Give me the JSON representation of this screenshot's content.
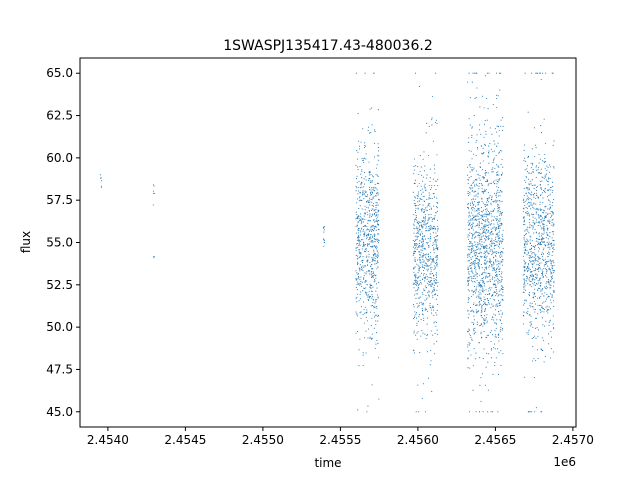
{
  "chart_data": {
    "type": "scatter",
    "title": "1SWASPJ135417.43-480036.2",
    "xlabel": "time",
    "ylabel": "flux",
    "x_offset_label": "1e6",
    "xlim": [
      2.45382,
      2.45702
    ],
    "ylim": [
      44.1,
      65.9
    ],
    "x_ticks": [
      2.454,
      2.4545,
      2.455,
      2.4555,
      2.456,
      2.4565,
      2.457
    ],
    "x_tick_labels": [
      "2.4540",
      "2.4545",
      "2.4550",
      "2.4555",
      "2.4560",
      "2.4565",
      "2.4570"
    ],
    "y_ticks": [
      45.0,
      47.5,
      50.0,
      52.5,
      55.0,
      57.5,
      60.0,
      62.5,
      65.0
    ],
    "y_tick_labels": [
      "45.0",
      "47.5",
      "50.0",
      "52.5",
      "55.0",
      "57.5",
      "60.0",
      "62.5",
      "65.0"
    ],
    "grid": false,
    "marker_color": "#1f77b4",
    "clusters": [
      {
        "x_range": [
          2.45395,
          2.45396
        ],
        "y_center": 58.6,
        "y_spread": 0.2,
        "count": 6
      },
      {
        "x_range": [
          2.45429,
          2.4543
        ],
        "y_center": 58.0,
        "y_spread": 0.5,
        "count": 6
      },
      {
        "x_range": [
          2.45429,
          2.4543
        ],
        "y_center": 54.2,
        "y_spread": 0.2,
        "count": 3
      },
      {
        "x_range": [
          2.45539,
          2.4554
        ],
        "y_center": 55.4,
        "y_spread": 0.4,
        "count": 12
      },
      {
        "x_range": [
          2.4556,
          2.45575
        ],
        "y_center": 55.2,
        "y_spread": 2.6,
        "count": 700
      },
      {
        "x_range": [
          2.45597,
          2.45613
        ],
        "y_center": 54.6,
        "y_spread": 2.5,
        "count": 700
      },
      {
        "x_range": [
          2.45632,
          2.45655
        ],
        "y_center": 55.0,
        "y_spread": 3.2,
        "count": 1300
      },
      {
        "x_range": [
          2.45668,
          2.45688
        ],
        "y_center": 54.8,
        "y_spread": 2.7,
        "count": 900
      }
    ]
  }
}
